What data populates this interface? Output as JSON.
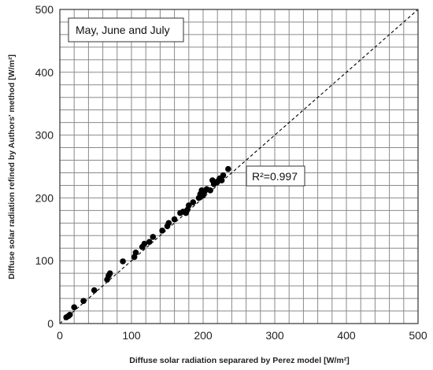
{
  "chart_data": {
    "type": "scatter",
    "title": "",
    "xlabel": "Diffuse solar radiation separared by Perez model [W/m²]",
    "ylabel": "Diffuse solar radiation refined by Authors' method [W/m²]",
    "xlim": [
      0,
      500
    ],
    "ylim": [
      0,
      500
    ],
    "xticks": [
      "0",
      "100",
      "200",
      "300",
      "400",
      "500"
    ],
    "yticks": [
      "0",
      "100",
      "200",
      "300",
      "400",
      "500"
    ],
    "minor_grid_step": 20,
    "grid": true,
    "colors": {
      "points": "#000000",
      "grid": "#8a8a8a",
      "line": "#000000"
    },
    "annotations": {
      "period": "May, June and July",
      "r2": "R²=0.997"
    },
    "reference_line": {
      "style": "dashed",
      "from": [
        0,
        0
      ],
      "to": [
        500,
        500
      ]
    },
    "series": [
      {
        "x": [
          9,
          12,
          14,
          20,
          33,
          48,
          66,
          68,
          70,
          88,
          104,
          106,
          115,
          118,
          125,
          130,
          143,
          150,
          152,
          160,
          168,
          172,
          176,
          178,
          180,
          186,
          194,
          196,
          198,
          200,
          202,
          205,
          210,
          213,
          215,
          218,
          220,
          223,
          226,
          228,
          235
        ],
        "y": [
          10,
          12,
          14,
          26,
          36,
          53,
          70,
          76,
          80,
          99,
          106,
          113,
          122,
          127,
          130,
          138,
          148,
          155,
          160,
          166,
          176,
          178,
          176,
          181,
          188,
          193,
          200,
          206,
          212,
          204,
          210,
          214,
          212,
          228,
          222,
          225,
          226,
          231,
          228,
          236,
          246
        ]
      }
    ]
  }
}
